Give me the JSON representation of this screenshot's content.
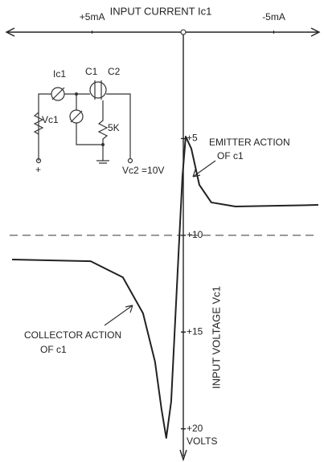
{
  "chart_data": {
    "type": "line",
    "title": "INPUT CURRENT Ic1",
    "y_label": "INPUT VOLTAGE Vc1",
    "y_unit": "VOLTS",
    "xlim": [
      9.5,
      -7.5
    ],
    "ylim": [
      -0.5,
      21.3
    ],
    "xticks": [
      {
        "value": 5,
        "label": "+5mA"
      },
      {
        "value": -5,
        "label": "-5mA"
      }
    ],
    "yticks": [
      {
        "value": 5,
        "label": "+5"
      },
      {
        "value": 10,
        "label": "+10"
      },
      {
        "value": 15,
        "label": "+15"
      },
      {
        "value": 20,
        "label": "+20"
      }
    ],
    "series": [
      {
        "color": "#222",
        "x": [
          9.41,
          5.08,
          3.31,
          2.2,
          1.54,
          1.18,
          0.92,
          0.65,
          0.43,
          0.21,
          0.03,
          -0.15,
          -0.46,
          -0.9,
          -1.56,
          -2.89,
          -7.45
        ],
        "values": [
          11.25,
          11.34,
          12.17,
          14.03,
          16.53,
          19.0,
          20.47,
          18.6,
          14.45,
          10.3,
          6.97,
          4.9,
          5.52,
          7.39,
          8.3,
          8.51,
          8.43
        ]
      }
    ],
    "annotations": [
      "EMITTER ACTION",
      "OF c1",
      "COLLECTOR ACTION",
      "OF c1"
    ]
  },
  "circuit": {
    "labels": [
      "Ic1",
      "C1",
      "C2",
      "Vc1",
      "5K",
      "+",
      "Vc2 =10V"
    ]
  }
}
